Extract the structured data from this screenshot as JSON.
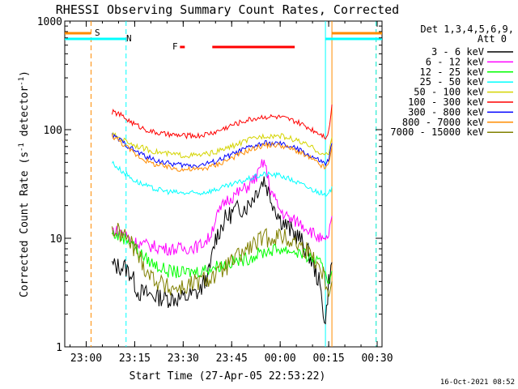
{
  "chart_data": {
    "type": "line",
    "title": "RHESSI Observing Summary Count Rates, Corrected",
    "xlabel": "Start Time (27-Apr-05 22:53:22)",
    "ylabel_main": "Corrected Count Rate (s",
    "ylabel_sup1": "-1",
    "ylabel_mid": " detector",
    "ylabel_sup2": "-1",
    "ylabel_end": ")",
    "yscale": "log",
    "ylim": [
      1,
      1000
    ],
    "xlim": [
      "22:53:22",
      "00:31:30"
    ],
    "x_ticks": [
      "23:00",
      "23:15",
      "23:30",
      "23:45",
      "00:00",
      "00:15",
      "00:30"
    ],
    "y_ticks": [
      "1",
      "10",
      "100",
      "1000"
    ],
    "timestamp": "16-Oct-2021 08:52",
    "legend": {
      "placement": "right",
      "header1": "Det 1,3,4,5,6,9,",
      "header2": "Att 0",
      "entries": [
        {
          "label": "3 - 6 keV",
          "color": "#000000"
        },
        {
          "label": "6 - 12 keV",
          "color": "#ff00ff"
        },
        {
          "label": "12 - 25 keV",
          "color": "#00ff00"
        },
        {
          "label": "25 - 50 keV",
          "color": "#00ffff"
        },
        {
          "label": "50 - 100 keV",
          "color": "#d4d400"
        },
        {
          "label": "100 - 300 keV",
          "color": "#ff0000"
        },
        {
          "label": "300 - 800 keV",
          "color": "#0000ff"
        },
        {
          "label": "800 - 7000 keV",
          "color": "#ff8c00"
        },
        {
          "label": "7000 - 15000 keV",
          "color": "#808000"
        }
      ]
    },
    "flags": [
      {
        "label": "S",
        "color": "#ff8c00",
        "segments": [
          [
            "22:53:22",
            "23:01:30"
          ],
          [
            "00:16:00",
            "00:31:30"
          ]
        ]
      },
      {
        "label": "N",
        "color": "#00ffff",
        "segments": [
          [
            "22:53:22",
            "23:12:20"
          ],
          [
            "00:14:00",
            "00:31:30"
          ]
        ]
      },
      {
        "label": "F",
        "color": "#ff0000",
        "segments": [
          [
            "23:29:00",
            "23:30:30"
          ],
          [
            "23:39:00",
            "00:04:30"
          ]
        ]
      }
    ],
    "markers": [
      {
        "time": "23:01:30",
        "color": "#ff8c00",
        "style": "dashed"
      },
      {
        "time": "23:12:20",
        "color": "#00ffff",
        "style": "dashed"
      },
      {
        "time": "00:14:00",
        "color": "#00ffff",
        "style": "solid"
      },
      {
        "time": "00:16:00",
        "color": "#ff8c00",
        "style": "solid"
      },
      {
        "time": "00:29:40",
        "color": "#ff8c00",
        "style": "dashed"
      },
      {
        "time": "00:29:40",
        "color": "#00ffff",
        "style": "dashed"
      }
    ],
    "series": [
      {
        "name": "3 - 6 keV",
        "color": "#000000",
        "x": [
          "23:08",
          "23:12",
          "23:14",
          "23:16",
          "23:20",
          "23:25",
          "23:30",
          "23:35",
          "23:38",
          "23:40",
          "23:43",
          "23:46",
          "23:50",
          "23:53",
          "23:55",
          "23:57",
          "00:00",
          "00:03",
          "00:06",
          "00:09",
          "00:12",
          "00:13",
          "00:14",
          "00:15",
          "00:16"
        ],
        "y": [
          5.6,
          5.4,
          4.6,
          3.2,
          3.0,
          2.8,
          2.8,
          3.2,
          4.8,
          10,
          15,
          18,
          20,
          28,
          35,
          24,
          15,
          12,
          10,
          7,
          4,
          2.6,
          1.6,
          4,
          6
        ]
      },
      {
        "name": "6 - 12 keV",
        "color": "#ff00ff",
        "x": [
          "23:08",
          "23:12",
          "23:14",
          "23:16",
          "23:20",
          "23:25",
          "23:30",
          "23:35",
          "23:38",
          "23:40",
          "23:43",
          "23:46",
          "23:50",
          "23:53",
          "23:55",
          "23:57",
          "00:00",
          "00:03",
          "00:06",
          "00:09",
          "00:12",
          "00:14",
          "00:15",
          "00:16"
        ],
        "y": [
          12,
          11,
          9.5,
          9,
          8.5,
          8,
          8,
          8.5,
          10,
          15,
          22,
          25,
          30,
          38,
          52,
          28,
          18,
          15,
          14,
          12,
          10,
          9,
          11,
          16
        ]
      },
      {
        "name": "12 - 25 keV",
        "color": "#00ff00",
        "x": [
          "23:08",
          "23:12",
          "23:14",
          "23:16",
          "23:20",
          "23:25",
          "23:30",
          "23:35",
          "23:40",
          "23:45",
          "23:50",
          "23:55",
          "00:00",
          "00:05",
          "00:10",
          "00:13",
          "00:14",
          "00:15",
          "00:16"
        ],
        "y": [
          11,
          10,
          9.5,
          7.5,
          6,
          5,
          4.8,
          5,
          5.5,
          6,
          6.5,
          7.5,
          8,
          7.5,
          6.5,
          5.5,
          5,
          4,
          5
        ]
      },
      {
        "name": "25 - 50 keV",
        "color": "#00ffff",
        "x": [
          "23:08",
          "23:10",
          "23:15",
          "23:20",
          "23:25",
          "23:30",
          "23:35",
          "23:40",
          "23:45",
          "23:50",
          "23:55",
          "00:00",
          "00:05",
          "00:10",
          "00:13",
          "00:14",
          "00:15",
          "00:16"
        ],
        "y": [
          50,
          44,
          34,
          29,
          27,
          26,
          26,
          28,
          31,
          35,
          39,
          38,
          33,
          28,
          26,
          24,
          25,
          30
        ]
      },
      {
        "name": "50 - 100 keV",
        "color": "#d4d400",
        "x": [
          "23:08",
          "23:10",
          "23:15",
          "23:20",
          "23:25",
          "23:30",
          "23:35",
          "23:40",
          "23:45",
          "23:50",
          "23:55",
          "00:00",
          "00:05",
          "00:10",
          "00:13",
          "00:14",
          "00:15",
          "00:16"
        ],
        "y": [
          90,
          85,
          72,
          64,
          60,
          58,
          58,
          62,
          70,
          80,
          88,
          88,
          80,
          68,
          60,
          58,
          60,
          85
        ]
      },
      {
        "name": "100 - 300 keV",
        "color": "#ff0000",
        "x": [
          "23:08",
          "23:10",
          "23:15",
          "23:20",
          "23:25",
          "23:30",
          "23:35",
          "23:40",
          "23:45",
          "23:50",
          "23:55",
          "00:00",
          "00:05",
          "00:10",
          "00:13",
          "00:14",
          "00:15",
          "00:16"
        ],
        "y": [
          145,
          140,
          112,
          96,
          90,
          88,
          88,
          95,
          110,
          123,
          132,
          130,
          118,
          100,
          90,
          86,
          95,
          170
        ]
      },
      {
        "name": "300 - 800 keV",
        "color": "#0000ff",
        "x": [
          "23:08",
          "23:10",
          "23:15",
          "23:20",
          "23:25",
          "23:30",
          "23:35",
          "23:40",
          "23:45",
          "23:50",
          "23:55",
          "00:00",
          "00:05",
          "00:10",
          "00:13",
          "00:14",
          "00:15",
          "00:16"
        ],
        "y": [
          88,
          82,
          64,
          54,
          49,
          47,
          47,
          51,
          59,
          68,
          75,
          74,
          67,
          56,
          50,
          48,
          52,
          75
        ]
      },
      {
        "name": "800 - 7000 keV",
        "color": "#ff8c00",
        "x": [
          "23:08",
          "23:10",
          "23:15",
          "23:20",
          "23:25",
          "23:30",
          "23:35",
          "23:40",
          "23:45",
          "23:50",
          "23:55",
          "00:00",
          "00:05",
          "00:10",
          "00:13",
          "00:14",
          "00:15",
          "00:16"
        ],
        "y": [
          88,
          80,
          60,
          49,
          45,
          43,
          43,
          47,
          55,
          64,
          72,
          72,
          64,
          53,
          46,
          44,
          48,
          70
        ]
      },
      {
        "name": "7000 - 15000 keV",
        "color": "#808000",
        "x": [
          "23:08",
          "23:12",
          "23:15",
          "23:18",
          "23:20",
          "23:25",
          "23:30",
          "23:35",
          "23:40",
          "23:45",
          "23:50",
          "23:55",
          "00:00",
          "00:05",
          "00:10",
          "00:13",
          "00:14",
          "00:15",
          "00:16"
        ],
        "y": [
          12,
          10.5,
          8,
          5.5,
          4.5,
          3.5,
          3.5,
          4,
          4.5,
          6,
          8,
          10,
          10.5,
          9,
          7,
          5,
          4,
          3.5,
          4
        ]
      }
    ]
  }
}
